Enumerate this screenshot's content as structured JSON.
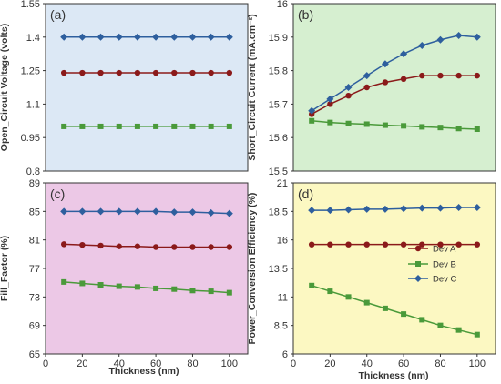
{
  "figure": {
    "xlabel_bottom_left": "Thickness (nm)",
    "xlabel_bottom_right": "Thickness (nm)",
    "legend": [
      "Dev A",
      "Dev B",
      "Dev C"
    ]
  },
  "series_colors": {
    "Dev A": "#8b1a1a",
    "Dev B": "#4a9a3a",
    "Dev C": "#2e5f9e"
  },
  "chart_data": [
    {
      "type": "line",
      "panel": "(a)",
      "background": "#dce8f5",
      "ylabel": "Open_Circuit Voltage (volts)",
      "x_shared": [
        10,
        20,
        30,
        40,
        50,
        60,
        70,
        80,
        90,
        100
      ],
      "xlim": [
        0,
        110
      ],
      "ylim": [
        0.8,
        1.55
      ],
      "yticks": [
        "1.55",
        "1.4",
        "1.25",
        "1.1",
        "0.95",
        "0.8"
      ],
      "series": [
        {
          "name": "Dev A",
          "marker": "circle",
          "values": [
            1.24,
            1.24,
            1.24,
            1.24,
            1.24,
            1.24,
            1.24,
            1.24,
            1.24,
            1.24
          ]
        },
        {
          "name": "Dev B",
          "marker": "square",
          "values": [
            1.0,
            1.0,
            1.0,
            1.0,
            1.0,
            1.0,
            1.0,
            1.0,
            1.0,
            1.0
          ]
        },
        {
          "name": "Dev C",
          "marker": "diamond",
          "values": [
            1.4,
            1.4,
            1.4,
            1.4,
            1.4,
            1.4,
            1.4,
            1.4,
            1.4,
            1.4
          ]
        }
      ]
    },
    {
      "type": "line",
      "panel": "(b)",
      "background": "#d6efd0",
      "ylabel": "Short_Circuit Current (mA.cm⁻²)",
      "x_shared": [
        10,
        20,
        30,
        40,
        50,
        60,
        70,
        80,
        90,
        100
      ],
      "xlim": [
        0,
        110
      ],
      "ylim": [
        15.5,
        16
      ],
      "yticks": [
        "16",
        "15.9",
        "15.8",
        "15.7",
        "15.6",
        "15.5"
      ],
      "series": [
        {
          "name": "Dev A",
          "marker": "circle",
          "values": [
            15.67,
            15.7,
            15.725,
            15.75,
            15.765,
            15.775,
            15.785,
            15.785,
            15.785,
            15.785
          ]
        },
        {
          "name": "Dev B",
          "marker": "square",
          "values": [
            15.65,
            15.645,
            15.642,
            15.64,
            15.637,
            15.635,
            15.632,
            15.63,
            15.627,
            15.625
          ]
        },
        {
          "name": "Dev C",
          "marker": "diamond",
          "values": [
            15.68,
            15.715,
            15.75,
            15.785,
            15.82,
            15.85,
            15.875,
            15.892,
            15.905,
            15.9
          ]
        }
      ]
    },
    {
      "type": "line",
      "panel": "(c)",
      "background": "#ecc8e6",
      "ylabel": "Fill_Factor (%)",
      "x": [
        10,
        20,
        30,
        40,
        50,
        60,
        70,
        80,
        90,
        100
      ],
      "xlim": [
        0,
        110
      ],
      "ylim": [
        65,
        89
      ],
      "yticks": [
        "89",
        "85",
        "81",
        "77",
        "73",
        "69",
        "65"
      ],
      "xticks": [
        "0",
        "20",
        "40",
        "60",
        "80",
        "100"
      ],
      "series": [
        {
          "name": "Dev A",
          "marker": "circle",
          "values": [
            80.4,
            80.3,
            80.2,
            80.1,
            80.1,
            80.0,
            80.0,
            80.0,
            80.0,
            80.0
          ]
        },
        {
          "name": "Dev B",
          "marker": "square",
          "values": [
            75.1,
            74.9,
            74.7,
            74.5,
            74.4,
            74.2,
            74.1,
            73.9,
            73.8,
            73.6
          ]
        },
        {
          "name": "Dev C",
          "marker": "diamond",
          "values": [
            85.0,
            85.0,
            85.0,
            85.0,
            85.0,
            85.0,
            84.9,
            84.9,
            84.8,
            84.7
          ]
        }
      ]
    },
    {
      "type": "line",
      "panel": "(d)",
      "background": "#fcf8c2",
      "ylabel": "Power_Conversion Efficiency (%)",
      "x": [
        10,
        20,
        30,
        40,
        50,
        60,
        70,
        80,
        90,
        100
      ],
      "xlim": [
        0,
        110
      ],
      "ylim": [
        6,
        21
      ],
      "yticks": [
        "21",
        "18.5",
        "16",
        "13.5",
        "11",
        "8.5",
        "6"
      ],
      "xticks": [
        "0",
        "20",
        "40",
        "60",
        "80",
        "100"
      ],
      "legend_position": "right",
      "series": [
        {
          "name": "Dev A",
          "marker": "circle",
          "values": [
            15.6,
            15.6,
            15.6,
            15.6,
            15.6,
            15.6,
            15.6,
            15.6,
            15.6,
            15.6
          ]
        },
        {
          "name": "Dev B",
          "marker": "square",
          "values": [
            12.0,
            11.5,
            11.0,
            10.5,
            10.0,
            9.5,
            9.0,
            8.5,
            8.1,
            7.7
          ]
        },
        {
          "name": "Dev C",
          "marker": "diamond",
          "values": [
            18.6,
            18.6,
            18.65,
            18.7,
            18.7,
            18.75,
            18.8,
            18.8,
            18.85,
            18.85
          ]
        }
      ]
    }
  ]
}
